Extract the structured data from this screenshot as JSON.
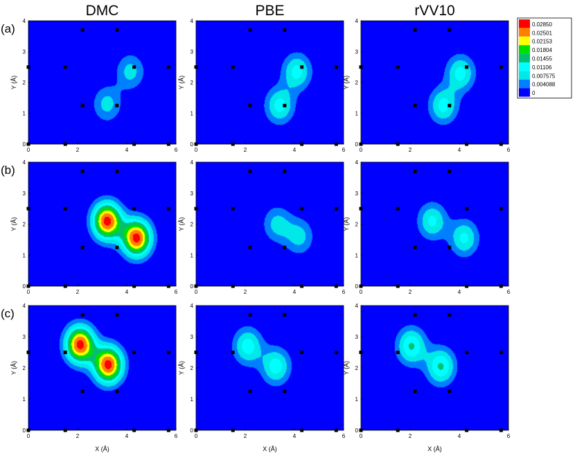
{
  "chart_data": {
    "type": "heatmap",
    "column_titles": [
      "DMC",
      "PBE",
      "rVV10"
    ],
    "row_labels": [
      "(a)",
      "(b)",
      "(c)"
    ],
    "xlabel": "X (Å)",
    "ylabel": "Y (Å)",
    "xlim": [
      0,
      6
    ],
    "ylim": [
      0,
      4
    ],
    "x_ticks": [
      "0",
      "2",
      "4",
      "6"
    ],
    "y_ticks": [
      "0",
      "1",
      "2",
      "3",
      "4"
    ],
    "legend": {
      "levels": [
        "0.02850",
        "0.02501",
        "0.02153",
        "0.01804",
        "0.01455",
        "0.01106",
        "0.007575",
        "0.004088",
        "0"
      ],
      "colors": [
        "#ff0000",
        "#ff8000",
        "#ffff00",
        "#00e000",
        "#00c070",
        "#00ffff",
        "#00e8e8",
        "#0080ff",
        "#0000ff"
      ],
      "placement": "top-right"
    },
    "atom_markers": [
      [
        2.2,
        3.7
      ],
      [
        3.6,
        3.7
      ],
      [
        0.0,
        2.5
      ],
      [
        1.5,
        2.5
      ],
      [
        4.3,
        2.5
      ],
      [
        5.7,
        2.5
      ],
      [
        2.2,
        1.25
      ],
      [
        3.6,
        1.25
      ],
      [
        0.0,
        0.0
      ],
      [
        1.5,
        0.0
      ],
      [
        4.3,
        0.0
      ],
      [
        5.7,
        0.0
      ]
    ],
    "panels": [
      {
        "row": "(a)",
        "column": "DMC",
        "peaks": [
          {
            "x": 3.2,
            "y": 1.3,
            "value": 0.009
          },
          {
            "x": 4.15,
            "y": 2.35,
            "value": 0.009
          }
        ]
      },
      {
        "row": "(a)",
        "column": "PBE",
        "peaks": [
          {
            "x": 3.4,
            "y": 1.25,
            "value": 0.0125
          },
          {
            "x": 4.1,
            "y": 2.35,
            "value": 0.0125
          }
        ]
      },
      {
        "row": "(a)",
        "column": "rVV10",
        "peaks": [
          {
            "x": 3.35,
            "y": 1.25,
            "value": 0.0125
          },
          {
            "x": 4.05,
            "y": 2.3,
            "value": 0.0125
          }
        ]
      },
      {
        "row": "(b)",
        "column": "DMC",
        "peaks": [
          {
            "x": 3.2,
            "y": 2.1,
            "value": 0.03
          },
          {
            "x": 4.4,
            "y": 1.55,
            "value": 0.03
          }
        ]
      },
      {
        "row": "(b)",
        "column": "PBE",
        "peaks": [
          {
            "x": 3.3,
            "y": 2.0,
            "value": 0.009
          },
          {
            "x": 4.2,
            "y": 1.6,
            "value": 0.009
          }
        ]
      },
      {
        "row": "(b)",
        "column": "rVV10",
        "peaks": [
          {
            "x": 2.9,
            "y": 2.1,
            "value": 0.012
          },
          {
            "x": 4.2,
            "y": 1.55,
            "value": 0.012
          }
        ]
      },
      {
        "row": "(c)",
        "column": "DMC",
        "peaks": [
          {
            "x": 2.1,
            "y": 2.75,
            "value": 0.03
          },
          {
            "x": 3.25,
            "y": 2.1,
            "value": 0.03
          }
        ]
      },
      {
        "row": "(c)",
        "column": "PBE",
        "peaks": [
          {
            "x": 2.1,
            "y": 2.7,
            "value": 0.013
          },
          {
            "x": 3.25,
            "y": 2.05,
            "value": 0.013
          }
        ]
      },
      {
        "row": "(c)",
        "column": "rVV10",
        "peaks": [
          {
            "x": 2.05,
            "y": 2.7,
            "value": 0.015
          },
          {
            "x": 3.25,
            "y": 2.05,
            "value": 0.015
          }
        ]
      }
    ]
  }
}
